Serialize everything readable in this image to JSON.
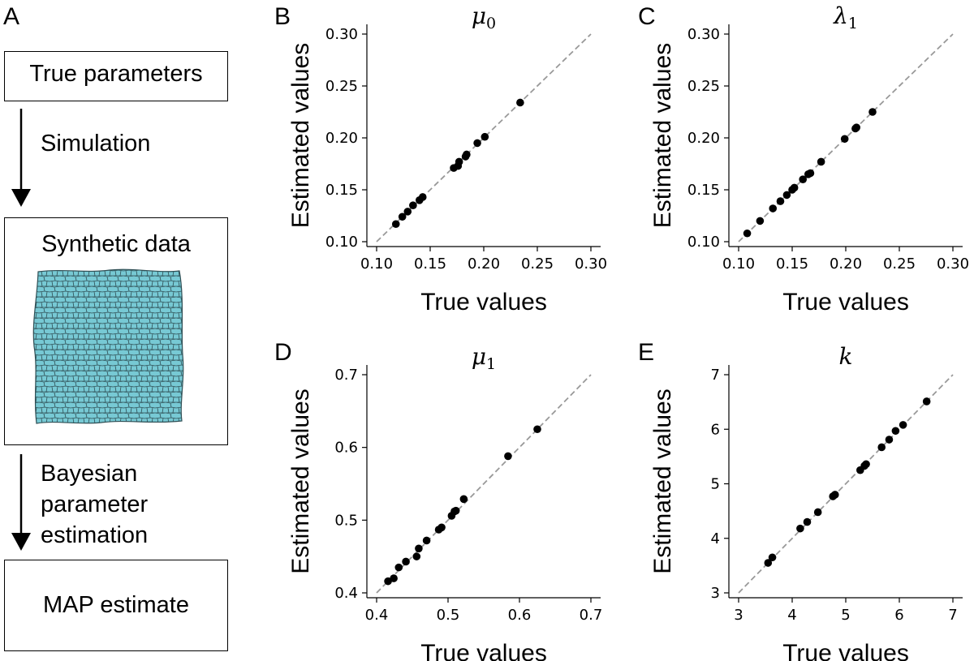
{
  "workflow": {
    "panel_letter": "A",
    "box_true_parameters": "True parameters",
    "step_simulation": "Simulation",
    "box_synthetic_data": "Synthetic data",
    "step_estimation_lines": [
      "Bayesian",
      "parameter",
      "estimation"
    ],
    "box_map_estimate": "MAP estimate",
    "tissue_color": "#77c9d4"
  },
  "chart_data": [
    {
      "panel": "B",
      "type": "scatter",
      "title": "μ",
      "title_sub": "0",
      "xlabel": "True values",
      "ylabel": "Estimated values",
      "xlim": [
        0.1,
        0.3
      ],
      "ylim": [
        0.1,
        0.3
      ],
      "xticks": [
        "0.10",
        "0.15",
        "0.20",
        "0.25",
        "0.30"
      ],
      "yticks": [
        "0.10",
        "0.15",
        "0.20",
        "0.25",
        "0.30"
      ],
      "tick_values": [
        0.1,
        0.15,
        0.2,
        0.25,
        0.3
      ],
      "reference_line": "y = x",
      "points": [
        [
          0.118,
          0.117
        ],
        [
          0.124,
          0.124
        ],
        [
          0.129,
          0.129
        ],
        [
          0.134,
          0.135
        ],
        [
          0.14,
          0.14
        ],
        [
          0.143,
          0.143
        ],
        [
          0.172,
          0.171
        ],
        [
          0.176,
          0.173
        ],
        [
          0.177,
          0.177
        ],
        [
          0.183,
          0.182
        ],
        [
          0.184,
          0.184
        ],
        [
          0.194,
          0.195
        ],
        [
          0.201,
          0.201
        ],
        [
          0.234,
          0.234
        ]
      ]
    },
    {
      "panel": "C",
      "type": "scatter",
      "title": "λ",
      "title_sub": "1",
      "xlabel": "True values",
      "ylabel": "Estimated values",
      "xlim": [
        0.1,
        0.3
      ],
      "ylim": [
        0.1,
        0.3
      ],
      "xticks": [
        "0.10",
        "0.15",
        "0.20",
        "0.25",
        "0.30"
      ],
      "yticks": [
        "0.10",
        "0.15",
        "0.20",
        "0.25",
        "0.30"
      ],
      "tick_values": [
        0.1,
        0.15,
        0.2,
        0.25,
        0.3
      ],
      "reference_line": "y = x",
      "points": [
        [
          0.108,
          0.108
        ],
        [
          0.12,
          0.12
        ],
        [
          0.132,
          0.132
        ],
        [
          0.139,
          0.139
        ],
        [
          0.145,
          0.145
        ],
        [
          0.15,
          0.15
        ],
        [
          0.152,
          0.152
        ],
        [
          0.16,
          0.16
        ],
        [
          0.165,
          0.165
        ],
        [
          0.167,
          0.166
        ],
        [
          0.177,
          0.177
        ],
        [
          0.199,
          0.199
        ],
        [
          0.209,
          0.209
        ],
        [
          0.21,
          0.21
        ],
        [
          0.225,
          0.225
        ]
      ]
    },
    {
      "panel": "D",
      "type": "scatter",
      "title": "μ",
      "title_sub": "1",
      "xlabel": "True values",
      "ylabel": "Estimated values",
      "xlim": [
        0.4,
        0.7
      ],
      "ylim": [
        0.4,
        0.7
      ],
      "xticks": [
        "0.4",
        "0.5",
        "0.6",
        "0.7"
      ],
      "yticks": [
        "0.4",
        "0.5",
        "0.6",
        "0.7"
      ],
      "tick_values": [
        0.4,
        0.5,
        0.6,
        0.7
      ],
      "reference_line": "y = x",
      "points": [
        [
          0.416,
          0.416
        ],
        [
          0.424,
          0.42
        ],
        [
          0.431,
          0.435
        ],
        [
          0.441,
          0.443
        ],
        [
          0.456,
          0.45
        ],
        [
          0.459,
          0.461
        ],
        [
          0.47,
          0.472
        ],
        [
          0.487,
          0.487
        ],
        [
          0.491,
          0.49
        ],
        [
          0.505,
          0.506
        ],
        [
          0.509,
          0.512
        ],
        [
          0.511,
          0.513
        ],
        [
          0.522,
          0.529
        ],
        [
          0.584,
          0.588
        ],
        [
          0.625,
          0.625
        ]
      ]
    },
    {
      "panel": "E",
      "type": "scatter",
      "title": "k",
      "title_sub": "",
      "xlabel": "True values",
      "ylabel": "Estimated values",
      "xlim": [
        3,
        7
      ],
      "ylim": [
        3,
        7
      ],
      "xticks": [
        "3",
        "4",
        "5",
        "6",
        "7"
      ],
      "yticks": [
        "3",
        "4",
        "5",
        "6",
        "7"
      ],
      "tick_values": [
        3,
        4,
        5,
        6,
        7
      ],
      "reference_line": "y = x",
      "points": [
        [
          3.55,
          3.55
        ],
        [
          3.63,
          3.65
        ],
        [
          4.15,
          4.18
        ],
        [
          4.28,
          4.3
        ],
        [
          4.48,
          4.48
        ],
        [
          4.76,
          4.77
        ],
        [
          4.8,
          4.8
        ],
        [
          5.27,
          5.25
        ],
        [
          5.35,
          5.33
        ],
        [
          5.38,
          5.36
        ],
        [
          5.67,
          5.67
        ],
        [
          5.81,
          5.81
        ],
        [
          5.93,
          5.97
        ],
        [
          6.07,
          6.08
        ],
        [
          6.51,
          6.51
        ]
      ]
    }
  ]
}
